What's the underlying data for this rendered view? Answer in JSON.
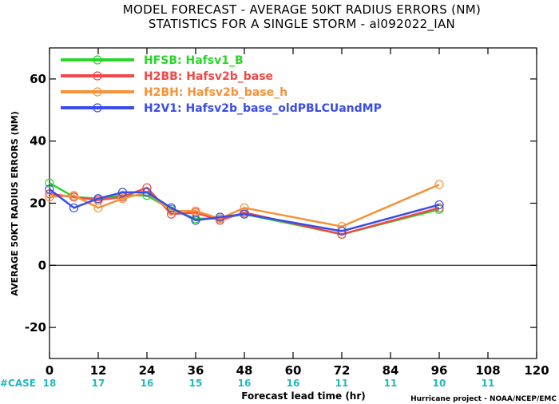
{
  "chart_data": {
    "type": "line",
    "title": "MODEL FORECAST - AVERAGE 50KT RADIUS ERRORS (NM)",
    "subtitle": "STATISTICS FOR A SINGLE STORM - al092022_IAN",
    "xlabel": "Forecast lead time (hr)",
    "ylabel": "AVERAGE 50KT RADIUS ERRORS (NM)",
    "xlim": [
      0,
      120
    ],
    "ylim": [
      -30,
      70
    ],
    "xticks": [
      0,
      12,
      24,
      36,
      48,
      60,
      72,
      84,
      96,
      108,
      120
    ],
    "yticks": [
      -20,
      0,
      20,
      40,
      60
    ],
    "grid": false,
    "zero_line": true,
    "legend_position": "top-left",
    "series": [
      {
        "name": "HFSB: Hafsv1_B",
        "color": "#2bd42b",
        "x": [
          0,
          6,
          12,
          18,
          24,
          30,
          36,
          42,
          48,
          72,
          96
        ],
        "y": [
          26.5,
          22,
          21.5,
          22.5,
          22.5,
          18,
          15,
          15,
          16.5,
          10,
          18
        ]
      },
      {
        "name": "H2BB: Hafsv2b_base",
        "color": "#f24747",
        "x": [
          0,
          6,
          12,
          18,
          24,
          30,
          36,
          42,
          48,
          72,
          96
        ],
        "y": [
          23,
          22,
          21,
          22,
          25,
          16.5,
          17,
          14.5,
          17,
          10,
          18.5
        ]
      },
      {
        "name": "H2BH: Hafsv2b_base_h",
        "color": "#f5923a",
        "x": [
          0,
          6,
          12,
          18,
          24,
          30,
          36,
          42,
          48,
          72,
          96
        ],
        "y": [
          22,
          22.5,
          18.5,
          21.5,
          23.5,
          17.5,
          17.5,
          15,
          18.5,
          12.5,
          26
        ]
      },
      {
        "name": "H2V1: Hafsv2b_base_oldPBLCUandMP",
        "color": "#3a4de8",
        "x": [
          0,
          6,
          12,
          18,
          24,
          30,
          36,
          42,
          48,
          72,
          96
        ],
        "y": [
          24.5,
          18.5,
          21.5,
          23.5,
          23.5,
          18.5,
          14.5,
          15.5,
          16.5,
          11,
          19.5
        ]
      }
    ],
    "case_label": "#CASE",
    "case_counts": [
      {
        "x": 0,
        "label": "18"
      },
      {
        "x": 12,
        "label": "17"
      },
      {
        "x": 24,
        "label": "16"
      },
      {
        "x": 36,
        "label": "15"
      },
      {
        "x": 48,
        "label": "16"
      },
      {
        "x": 60,
        "label": "16"
      },
      {
        "x": 72,
        "label": "11"
      },
      {
        "x": 84,
        "label": "11"
      },
      {
        "x": 96,
        "label": "10"
      },
      {
        "x": 108,
        "label": "11"
      }
    ],
    "credit": "Hurricane project - NOAA/NCEP/EMC"
  }
}
